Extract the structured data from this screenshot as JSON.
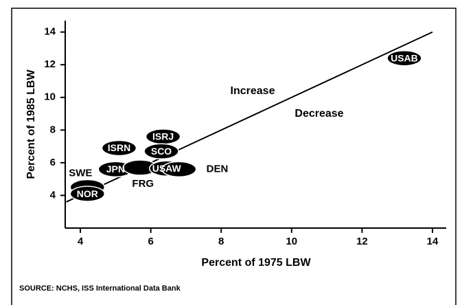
{
  "chart_data": {
    "type": "scatter",
    "xlabel": "Percent of 1975 LBW",
    "ylabel": "Percent of 1985 LBW",
    "source": "SOURCE: NCHS, ISS International Data Bank",
    "labels": [
      "USAB",
      "ISRJ",
      "SCO",
      "ISRN",
      "JPN",
      "FRG",
      "USAW",
      "DEN",
      "SWE",
      "NOR"
    ],
    "x": [
      13.2,
      6.35,
      6.3,
      5.1,
      5.0,
      5.7,
      6.45,
      6.8,
      4.2,
      4.2
    ],
    "y": [
      12.4,
      7.6,
      6.7,
      6.9,
      5.6,
      5.7,
      5.65,
      5.6,
      4.5,
      4.1
    ],
    "color": "#000000",
    "reference_line": {
      "x": [
        3.6,
        14
      ],
      "y": [
        3.6,
        14
      ]
    },
    "annotations": [
      "Increase",
      "Decrease"
    ],
    "xlim": [
      3.57,
      14.39
    ],
    "ylim": [
      2,
      14.7
    ],
    "xticks": [
      4,
      6,
      8,
      10,
      12,
      14
    ],
    "yticks": [
      4,
      6,
      8,
      10,
      12,
      14
    ]
  }
}
